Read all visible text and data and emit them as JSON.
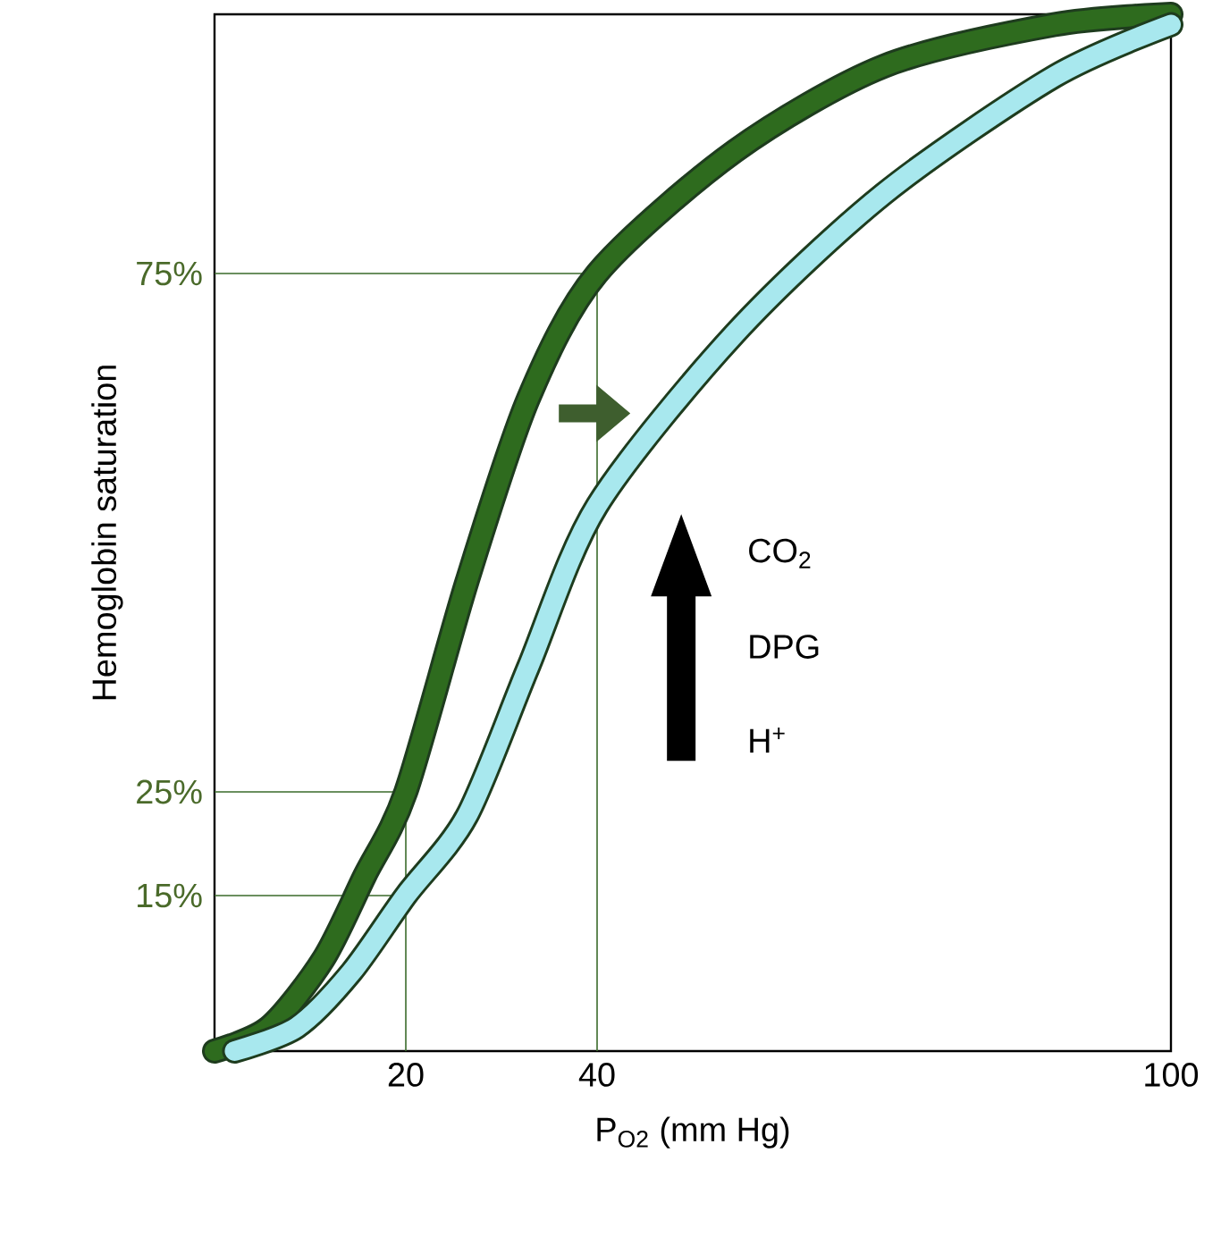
{
  "chart_data": {
    "type": "line",
    "xlabel": "P$_{O2}$ (mm Hg)",
    "ylabel": "Hemoglobin saturation",
    "xlim": [
      0,
      100
    ],
    "ylim": [
      0,
      100
    ],
    "xticks": [
      20,
      40,
      100
    ],
    "yticks": [
      {
        "value": 15,
        "label": "15%"
      },
      {
        "value": 25,
        "label": "25%"
      },
      {
        "value": 75,
        "label": "75%"
      }
    ],
    "series": [
      {
        "color": "#2e6b1e",
        "x": [
          0,
          5.7,
          11.4,
          15.7,
          20,
          26.4,
          32.8,
          40,
          54.4,
          70,
          87.8,
          100
        ],
        "values": [
          0,
          2.3,
          8.9,
          16.9,
          25,
          45.3,
          62.9,
          75,
          86.8,
          95,
          99,
          100
        ]
      },
      {
        "color": "#a8e8ee",
        "x": [
          2.1,
          8.6,
          14.3,
          20,
          26.4,
          32.8,
          40,
          54.4,
          70,
          87.8,
          100
        ],
        "values": [
          0,
          2.3,
          7.6,
          15,
          22.7,
          37,
          52.6,
          69.2,
          82.7,
          94,
          99
        ]
      }
    ],
    "ref_lines": [
      {
        "axis": "x",
        "value": 20,
        "color": "#3a6a2a"
      },
      {
        "axis": "x",
        "value": 40,
        "color": "#3a6a2a"
      },
      {
        "axis": "y",
        "value": 15,
        "color": "#3a6a2a"
      },
      {
        "axis": "y",
        "value": 25,
        "color": "#3a6a2a"
      },
      {
        "axis": "y",
        "value": 75,
        "color": "#3a6a2a"
      }
    ],
    "annotations": [
      "CO$_{2}$",
      "DPG",
      "H$^{+}$"
    ],
    "grid": false,
    "legend": false,
    "marker": "none",
    "line_style": "solid"
  }
}
